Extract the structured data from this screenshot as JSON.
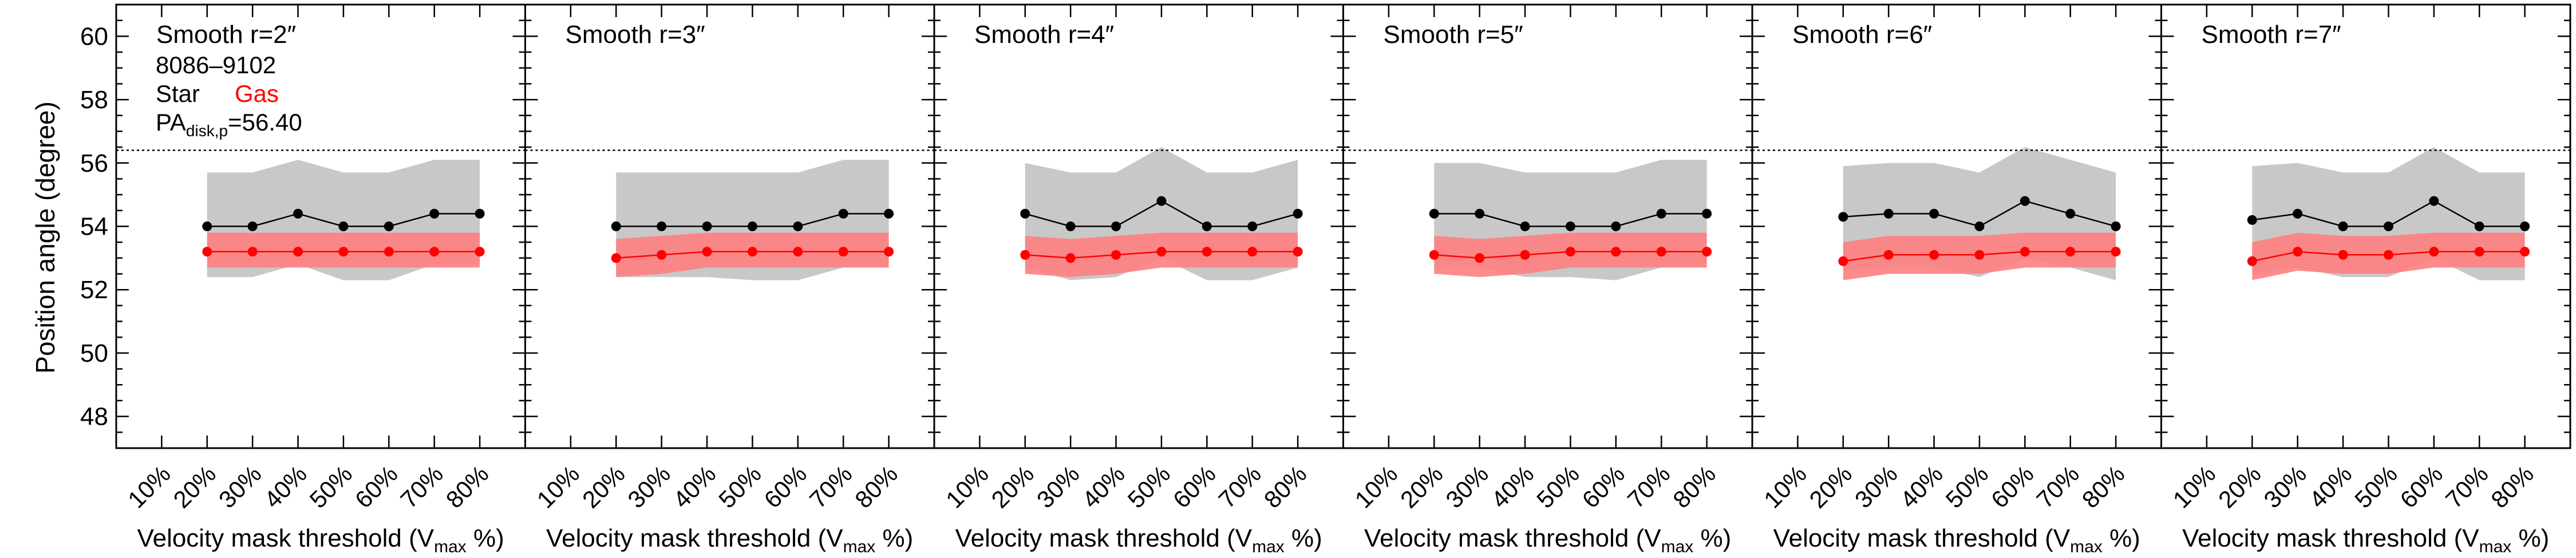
{
  "figure": {
    "ylabel": "Position angle (degree)",
    "xlabel_main": "Velocity mask threshold (V",
    "xlabel_sub": "max",
    "xlabel_end": " %)"
  },
  "legend": {
    "object_id": "8086–9102",
    "star_label": "Star",
    "gas_label": "Gas",
    "pa_prefix": "PA",
    "pa_sub": "disk,p",
    "pa_value": "=56.40"
  },
  "colors": {
    "star_line": "#000000",
    "star_band": "#c8c8c8",
    "gas_line": "#ff0000",
    "gas_band": "#ff8080",
    "reference_line": "#000000"
  },
  "chart_data": {
    "type": "line",
    "panel_count": 6,
    "y_range": [
      47,
      61
    ],
    "y_ticks": [
      48,
      50,
      52,
      54,
      56,
      58,
      60
    ],
    "x_range": [
      0,
      90
    ],
    "x_ticks": [
      10,
      20,
      30,
      40,
      50,
      60,
      70,
      80
    ],
    "x_tick_labels": [
      "10%",
      "20%",
      "30%",
      "40%",
      "50%",
      "60%",
      "70%",
      "80%"
    ],
    "reference_line_y": 56.4,
    "panels": [
      {
        "title": "Smooth r=2″",
        "x": [
          20,
          30,
          40,
          50,
          60,
          70,
          80
        ],
        "star": [
          54.0,
          54.0,
          54.4,
          54.0,
          54.0,
          54.4,
          54.4
        ],
        "star_upper": [
          55.7,
          55.7,
          56.1,
          55.7,
          55.7,
          56.1,
          56.1
        ],
        "star_lower": [
          52.4,
          52.4,
          52.8,
          52.3,
          52.3,
          52.8,
          52.8
        ],
        "gas": [
          53.2,
          53.2,
          53.2,
          53.2,
          53.2,
          53.2,
          53.2
        ],
        "gas_upper": [
          53.8,
          53.8,
          53.8,
          53.8,
          53.8,
          53.8,
          53.8
        ],
        "gas_lower": [
          52.7,
          52.7,
          52.7,
          52.7,
          52.7,
          52.7,
          52.7
        ]
      },
      {
        "title": "Smooth r=3″",
        "x": [
          20,
          30,
          40,
          50,
          60,
          70,
          80
        ],
        "star": [
          54.0,
          54.0,
          54.0,
          54.0,
          54.0,
          54.4,
          54.4
        ],
        "star_upper": [
          55.7,
          55.7,
          55.7,
          55.7,
          55.7,
          56.1,
          56.1
        ],
        "star_lower": [
          52.4,
          52.4,
          52.4,
          52.3,
          52.3,
          52.7,
          52.7
        ],
        "gas": [
          53.0,
          53.1,
          53.2,
          53.2,
          53.2,
          53.2,
          53.2
        ],
        "gas_upper": [
          53.6,
          53.7,
          53.8,
          53.8,
          53.8,
          53.8,
          53.8
        ],
        "gas_lower": [
          52.4,
          52.5,
          52.7,
          52.7,
          52.7,
          52.7,
          52.7
        ]
      },
      {
        "title": "Smooth r=4″",
        "x": [
          20,
          30,
          40,
          50,
          60,
          70,
          80
        ],
        "star": [
          54.4,
          54.0,
          54.0,
          54.8,
          54.0,
          54.0,
          54.4
        ],
        "star_upper": [
          56.0,
          55.7,
          55.7,
          56.5,
          55.7,
          55.7,
          56.1
        ],
        "star_lower": [
          52.7,
          52.3,
          52.4,
          53.0,
          52.3,
          52.3,
          52.7
        ],
        "gas": [
          53.1,
          53.0,
          53.1,
          53.2,
          53.2,
          53.2,
          53.2
        ],
        "gas_upper": [
          53.7,
          53.6,
          53.7,
          53.8,
          53.8,
          53.8,
          53.8
        ],
        "gas_lower": [
          52.5,
          52.4,
          52.5,
          52.7,
          52.7,
          52.7,
          52.7
        ]
      },
      {
        "title": "Smooth r=5″",
        "x": [
          20,
          30,
          40,
          50,
          60,
          70,
          80
        ],
        "star": [
          54.4,
          54.4,
          54.0,
          54.0,
          54.0,
          54.4,
          54.4
        ],
        "star_upper": [
          56.0,
          56.0,
          55.7,
          55.7,
          55.7,
          56.1,
          56.1
        ],
        "star_lower": [
          52.7,
          52.7,
          52.4,
          52.4,
          52.3,
          52.7,
          52.7
        ],
        "gas": [
          53.1,
          53.0,
          53.1,
          53.2,
          53.2,
          53.2,
          53.2
        ],
        "gas_upper": [
          53.7,
          53.6,
          53.7,
          53.8,
          53.8,
          53.8,
          53.8
        ],
        "gas_lower": [
          52.5,
          52.4,
          52.5,
          52.7,
          52.7,
          52.7,
          52.7
        ]
      },
      {
        "title": "Smooth r=6″",
        "x": [
          20,
          30,
          40,
          50,
          60,
          70,
          80
        ],
        "star": [
          54.3,
          54.4,
          54.4,
          54.0,
          54.8,
          54.4,
          54.0
        ],
        "star_upper": [
          55.9,
          56.0,
          56.0,
          55.7,
          56.5,
          56.1,
          55.7
        ],
        "star_lower": [
          52.6,
          52.7,
          52.7,
          52.4,
          53.0,
          52.7,
          52.3
        ],
        "gas": [
          52.9,
          53.1,
          53.1,
          53.1,
          53.2,
          53.2,
          53.2
        ],
        "gas_upper": [
          53.5,
          53.7,
          53.7,
          53.7,
          53.8,
          53.8,
          53.8
        ],
        "gas_lower": [
          52.3,
          52.5,
          52.5,
          52.5,
          52.7,
          52.7,
          52.7
        ]
      },
      {
        "title": "Smooth r=7″",
        "x": [
          20,
          30,
          40,
          50,
          60,
          70,
          80
        ],
        "star": [
          54.2,
          54.4,
          54.0,
          54.0,
          54.8,
          54.0,
          54.0
        ],
        "star_upper": [
          55.9,
          56.0,
          55.7,
          55.7,
          56.5,
          55.7,
          55.7
        ],
        "star_lower": [
          52.5,
          52.7,
          52.4,
          52.4,
          53.0,
          52.3,
          52.3
        ],
        "gas": [
          52.9,
          53.2,
          53.1,
          53.1,
          53.2,
          53.2,
          53.2
        ],
        "gas_upper": [
          53.5,
          53.8,
          53.7,
          53.7,
          53.8,
          53.8,
          53.8
        ],
        "gas_lower": [
          52.3,
          52.6,
          52.5,
          52.5,
          52.7,
          52.7,
          52.7
        ]
      }
    ]
  }
}
